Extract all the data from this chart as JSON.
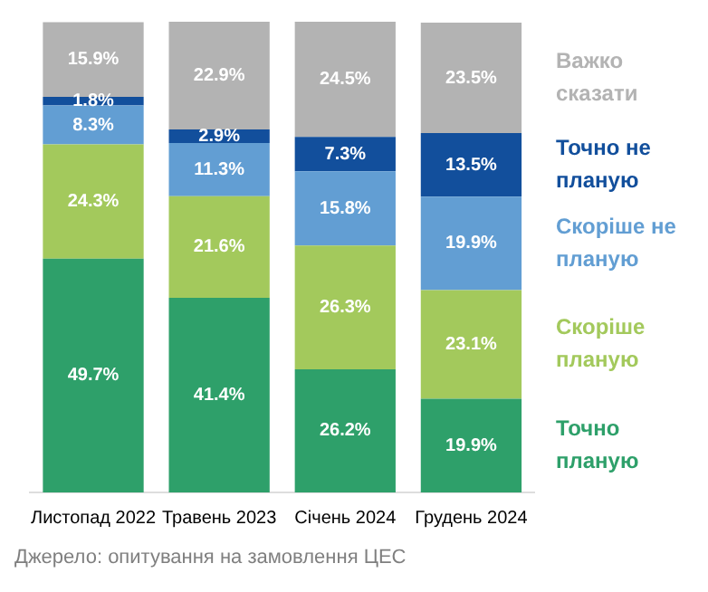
{
  "chart_data": {
    "type": "bar",
    "stacked": true,
    "legend": "right",
    "categories": [
      "Листопад 2022",
      "Травень 2023",
      "Січень 2024",
      "Грудень 2024"
    ],
    "series": [
      {
        "name": "Точно планую",
        "color": "#2ea06a",
        "values": [
          49.7,
          41.4,
          26.2,
          19.9
        ],
        "value_labels": [
          "49.7%",
          "41.4%",
          "26.2%",
          "19.9%"
        ]
      },
      {
        "name": "Скоріше планую",
        "color": "#a3c95c",
        "values": [
          24.3,
          21.6,
          26.3,
          23.1
        ],
        "value_labels": [
          "24.3%",
          "21.6%",
          "26.3%",
          "23.1%"
        ]
      },
      {
        "name": "Скоріше не планую",
        "color": "#629ed3",
        "values": [
          8.3,
          11.3,
          15.8,
          19.9
        ],
        "value_labels": [
          "8.3%",
          "11.3%",
          "15.8%",
          "19.9%"
        ]
      },
      {
        "name": "Точно не планую",
        "color": "#124f9c",
        "values": [
          1.8,
          2.9,
          7.3,
          13.5
        ],
        "value_labels": [
          "1.8%",
          "2.9%",
          "7.3%",
          "13.5%"
        ]
      },
      {
        "name": "Важко сказати",
        "color": "#b3b3b3",
        "values": [
          15.9,
          22.9,
          24.5,
          23.5
        ],
        "value_labels": [
          "15.9%",
          "22.9%",
          "24.5%",
          "23.5%"
        ]
      }
    ],
    "annotations": [
      "Джерело: опитування на замовлення ЦЕС"
    ]
  }
}
